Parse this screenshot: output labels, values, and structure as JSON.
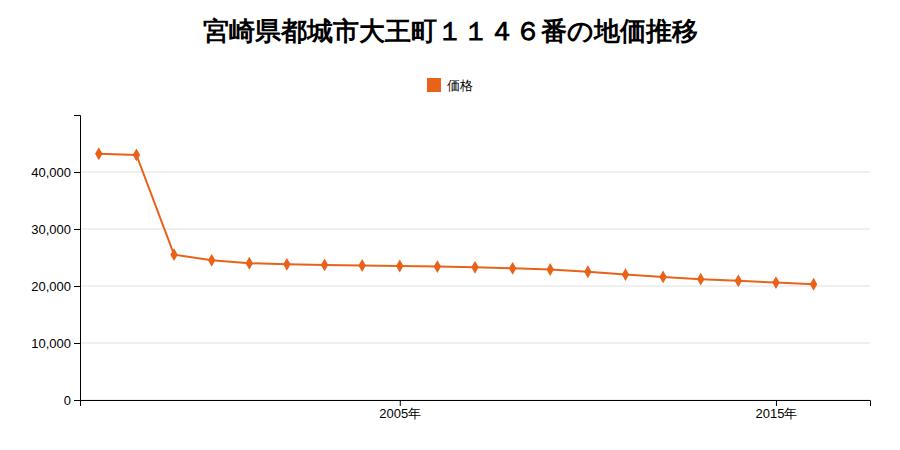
{
  "chart_data": {
    "type": "line",
    "title": "宮崎県都城市大王町１１４６番の地価推移",
    "x": [
      1997,
      1998,
      1999,
      2000,
      2001,
      2002,
      2003,
      2004,
      2005,
      2006,
      2007,
      2008,
      2009,
      2010,
      2011,
      2012,
      2013,
      2014,
      2015,
      2016
    ],
    "xlim": [
      1996.5,
      2017.5
    ],
    "xticks": [
      {
        "value": 2005,
        "label": "2005年"
      },
      {
        "value": 2015,
        "label": "2015年"
      }
    ],
    "ylim": [
      0,
      50000
    ],
    "yticks": [
      0,
      {
        "value": 10000,
        "label": "10,000"
      },
      {
        "value": 20000,
        "label": "20,000"
      },
      {
        "value": 30000,
        "label": "30,000"
      },
      {
        "value": 40000,
        "label": "40,000"
      }
    ],
    "series": [
      {
        "name": "価格",
        "color": "#e8621a",
        "marker": "diamond",
        "values": [
          43200,
          43000,
          25500,
          24500,
          24000,
          23800,
          23700,
          23600,
          23500,
          23400,
          23300,
          23100,
          22900,
          22500,
          22000,
          21600,
          21200,
          20900,
          20600,
          20300
        ]
      }
    ],
    "grid": true,
    "legend": "top"
  }
}
